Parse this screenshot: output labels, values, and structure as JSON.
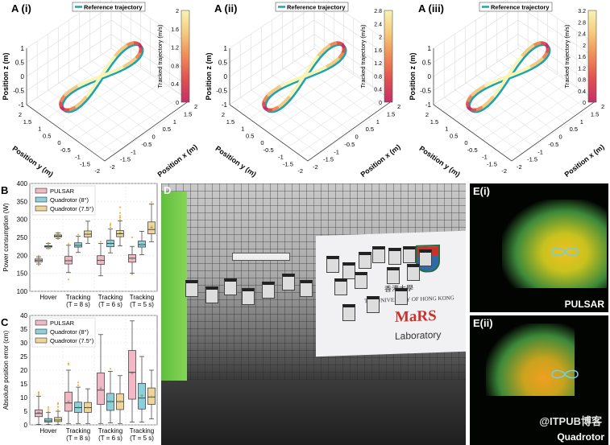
{
  "panels_a": [
    {
      "label": "A (i)",
      "legend": "Reference trajectory",
      "colorbar_label": "Tracked trajectory (m/s)",
      "colorbar_ticks": [
        "0",
        "0.4",
        "0.8",
        "1.2",
        "1.6",
        "2"
      ]
    },
    {
      "label": "A (ii)",
      "legend": "Reference trajectory",
      "colorbar_label": "Tracked trajectory (m/s)",
      "colorbar_ticks": [
        "0",
        "0.4",
        "0.8",
        "1.2",
        "1.6",
        "2",
        "2.4",
        "2.8"
      ]
    },
    {
      "label": "A (iii)",
      "legend": "Reference trajectory",
      "colorbar_label": "Tracked trajectory (m/s)",
      "colorbar_ticks": [
        "0",
        "0.4",
        "0.8",
        "1.2",
        "1.6",
        "2",
        "2.4",
        "2.8",
        "3.2"
      ]
    }
  ],
  "axes3d": {
    "zlabel": "Position z (m)",
    "ylabel": "Position y (m)",
    "xlabel": "Position x (m)",
    "z_ticks": [
      "1",
      "0.5",
      "0",
      "-0.5",
      "-1"
    ],
    "y_ticks": [
      "2",
      "1.5",
      "1",
      "0.5",
      "0",
      "-0.5",
      "-1",
      "-1.5",
      "-2"
    ],
    "x_ticks": [
      "-2",
      "-1.5",
      "-1",
      "-0.5",
      "0",
      "0.5",
      "1",
      "1.5",
      "2"
    ]
  },
  "colors": {
    "reference": "#1aa3b5",
    "colormap": [
      "#c2306a",
      "#e0504f",
      "#f08a55",
      "#f6c97c",
      "#f8f4b4"
    ],
    "pulsar": "#f2b8c6",
    "quad8": "#8ecfdc",
    "quad75": "#f0d49a",
    "mean_marker": "#2e9a4c",
    "outlier": "#f5a623"
  },
  "chart_data": [
    {
      "panel": "B",
      "type": "box",
      "ylabel": "Power consumption (W)",
      "ylim": [
        100,
        400
      ],
      "yticks": [
        "100",
        "150",
        "200",
        "250",
        "300",
        "350",
        "400"
      ],
      "categories": [
        "Hover",
        "Tracking\n(T = 8 s)",
        "Tracking\n(T = 6 s)",
        "Tracking\n(T = 5 s)"
      ],
      "category_lines": [
        [
          "Hover",
          ""
        ],
        [
          "Tracking",
          "(T = 8 s)"
        ],
        [
          "Tracking",
          "(T = 6 s)"
        ],
        [
          "Tracking",
          "(T = 5 s)"
        ]
      ],
      "legend_position": "top-left",
      "grid": true,
      "series": [
        {
          "name": "PULSAR",
          "boxes": [
            {
              "min": 176,
              "q1": 182,
              "median": 186,
              "q3": 190,
              "max": 196,
              "mean": 186,
              "outliers": [
                173,
                199
              ]
            },
            {
              "min": 152,
              "q1": 176,
              "median": 185,
              "q3": 197,
              "max": 228,
              "mean": 185,
              "outliers": [
                133,
                232
              ]
            },
            {
              "min": 143,
              "q1": 175,
              "median": 186,
              "q3": 199,
              "max": 233,
              "mean": 186,
              "outliers": [
                238
              ]
            },
            {
              "min": 150,
              "q1": 181,
              "median": 192,
              "q3": 202,
              "max": 225,
              "mean": 192,
              "outliers": [
                147,
                250
              ]
            }
          ]
        },
        {
          "name": "Quadrotor (8°)",
          "boxes": [
            {
              "min": 219,
              "q1": 223,
              "median": 225,
              "q3": 227,
              "max": 233,
              "mean": 225,
              "outliers": [
                218,
                235
              ]
            },
            {
              "min": 208,
              "q1": 223,
              "median": 228,
              "q3": 235,
              "max": 253,
              "mean": 229,
              "outliers": [
                258
              ]
            },
            {
              "min": 207,
              "q1": 224,
              "median": 233,
              "q3": 242,
              "max": 273,
              "mean": 234,
              "outliers": [
                278,
                284,
                288
              ]
            },
            {
              "min": 202,
              "q1": 223,
              "median": 230,
              "q3": 240,
              "max": 267,
              "mean": 231,
              "outliers": []
            }
          ]
        },
        {
          "name": "Quadrotor (7.5°)",
          "boxes": [
            {
              "min": 247,
              "q1": 251,
              "median": 254,
              "q3": 257,
              "max": 262,
              "mean": 254,
              "outliers": [
                245,
                264
              ]
            },
            {
              "min": 233,
              "q1": 251,
              "median": 259,
              "q3": 268,
              "max": 295,
              "mean": 260,
              "outliers": []
            },
            {
              "min": 226,
              "q1": 252,
              "median": 260,
              "q3": 269,
              "max": 296,
              "mean": 262,
              "outliers": [
                300,
                305,
                310,
                318,
                334
              ]
            },
            {
              "min": 238,
              "q1": 260,
              "median": 272,
              "q3": 293,
              "max": 343,
              "mean": 279,
              "outliers": [
                348
              ]
            }
          ]
        }
      ]
    },
    {
      "panel": "C",
      "type": "box",
      "ylabel": "Absolute position error (cm)",
      "ylim": [
        0,
        40
      ],
      "yticks": [
        "0",
        "5",
        "10",
        "15",
        "20",
        "25",
        "30",
        "35",
        "40"
      ],
      "categories": [
        "Hover",
        "Tracking\n(T = 8 s)",
        "Tracking\n(T = 6 s)",
        "Tracking\n(T = 5 s)"
      ],
      "category_lines": [
        [
          "Hover",
          ""
        ],
        [
          "Tracking",
          "(T = 8 s)"
        ],
        [
          "Tracking",
          "(T = 6 s)"
        ],
        [
          "Tracking",
          "(T = 5 s)"
        ]
      ],
      "legend_position": "top-left",
      "grid": true,
      "series": [
        {
          "name": "PULSAR",
          "boxes": [
            {
              "min": 0.2,
              "q1": 3,
              "median": 4.2,
              "q3": 5.5,
              "max": 10.5,
              "mean": 4.5,
              "outliers": [
                11,
                11.5,
                12
              ]
            },
            {
              "min": 0.5,
              "q1": 5,
              "median": 8,
              "q3": 12,
              "max": 20,
              "mean": 8.5,
              "outliers": [
                22,
                22.5
              ]
            },
            {
              "min": 0.5,
              "q1": 7.5,
              "median": 12.7,
              "q3": 19,
              "max": 33,
              "mean": 13.6,
              "outliers": []
            },
            {
              "min": 1,
              "q1": 9.4,
              "median": 19.2,
              "q3": 27.2,
              "max": 38,
              "mean": 19,
              "outliers": []
            }
          ]
        },
        {
          "name": "Quadrotor (8°)",
          "boxes": [
            {
              "min": 0.1,
              "q1": 1,
              "median": 1.5,
              "q3": 2.3,
              "max": 4.5,
              "mean": 1.6,
              "outliers": [
                5,
                5.8,
                6.5
              ]
            },
            {
              "min": 0.5,
              "q1": 4.5,
              "median": 6.3,
              "q3": 8.3,
              "max": 13.8,
              "mean": 6.5,
              "outliers": [
                14.5,
                15.5
              ]
            },
            {
              "min": 0.7,
              "q1": 5.3,
              "median": 8.5,
              "q3": 11.5,
              "max": 19.6,
              "mean": 8.6,
              "outliers": [
                20.5
              ]
            },
            {
              "min": 1,
              "q1": 5.8,
              "median": 9.8,
              "q3": 15.2,
              "max": 25,
              "mean": 10.7,
              "outliers": []
            }
          ]
        },
        {
          "name": "Quadrotor (7.5°)",
          "boxes": [
            {
              "min": 0.1,
              "q1": 1.2,
              "median": 1.8,
              "q3": 2.7,
              "max": 5,
              "mean": 1.9,
              "outliers": [
                5.5,
                6.5,
                7.5,
                8
              ]
            },
            {
              "min": 0.5,
              "q1": 4.6,
              "median": 6.3,
              "q3": 8.2,
              "max": 13.2,
              "mean": 6.3,
              "outliers": []
            },
            {
              "min": 0.5,
              "q1": 5.6,
              "median": 8.5,
              "q3": 11.4,
              "max": 18,
              "mean": 8.6,
              "outliers": []
            },
            {
              "min": 2.2,
              "q1": 7.5,
              "median": 10.2,
              "q3": 13.5,
              "max": 20,
              "mean": 10.3,
              "outliers": []
            }
          ]
        }
      ]
    }
  ],
  "panel_d": {
    "label": "D",
    "banner_cn": "香港大學",
    "banner_en": "THE UNIVERSITY OF HONG KONG",
    "banner_lab_logo": "MaRS",
    "banner_lab": "Laboratory"
  },
  "panel_e": [
    {
      "label": "E(i)",
      "caption": "PULSAR"
    },
    {
      "label": "E(ii)",
      "caption": "Quadrotor",
      "watermark": "@ITPUB博客"
    }
  ]
}
